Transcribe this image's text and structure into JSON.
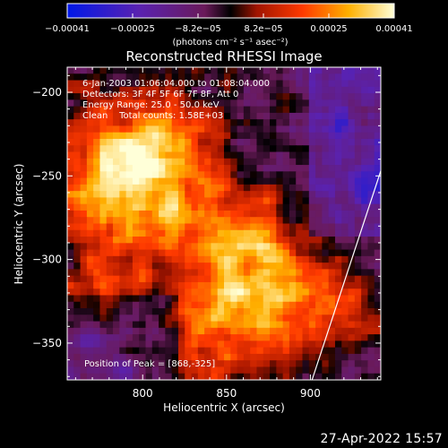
{
  "chart_data": {
    "type": "heatmap",
    "title": "Reconstructed RHESSI Image",
    "xlabel": "Heliocentric X (arcsec)",
    "ylabel": "Heliocentric Y (arcsec)",
    "xlim": [
      755,
      942
    ],
    "ylim": [
      -372,
      -185
    ],
    "x_ticks": [
      800,
      850,
      900
    ],
    "y_ticks": [
      -200,
      -250,
      -300,
      -350
    ],
    "x_tick_labels": [
      "800",
      "850",
      "900"
    ],
    "y_tick_labels": [
      "−200",
      "−250",
      "−300",
      "−350"
    ],
    "colorbar": {
      "ticks": [
        "−0.00041",
        "−0.00025",
        "−8.2e−05",
        "8.2e−05",
        "0.00025",
        "0.00041"
      ],
      "range": [
        -0.00041,
        0.00041
      ],
      "unit_label": "(photons cm⁻² s⁻¹ asec⁻²)"
    },
    "annotations": [
      "6-Jan-2003 01:06:04.000 to 01:08:04.000",
      "Detectors: 3F 4F 5F 6F 7F 8F, Att 0",
      "Energy Range: 25.0 - 50.0 keV",
      "Clean    Total counts: 1.58E+03"
    ],
    "peak_label": "Position of Peak = [868,-325]",
    "peak": [
      868,
      -325
    ],
    "limb_line": [
      [
        901,
        -372
      ],
      [
        942,
        -247
      ]
    ],
    "grid": false
  },
  "timestamp": "27-Apr-2022 15:57"
}
